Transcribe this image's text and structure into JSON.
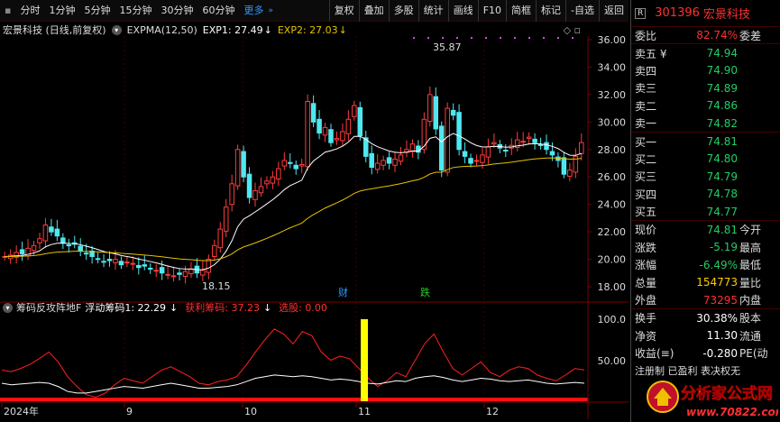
{
  "toolbar": {
    "periods": [
      "分时",
      "1分钟",
      "5分钟",
      "15分钟",
      "30分钟",
      "60分钟",
      "更多"
    ],
    "actions": [
      "复权",
      "叠加",
      "多股",
      "统计",
      "画线",
      "F10",
      "简框",
      "标记",
      "-自选",
      "返回"
    ]
  },
  "chart": {
    "stock_title": "宏景科技 (日线,前复权)",
    "indicator": "EXPMA(12,50)",
    "exp1": "EXP1: 27.49",
    "exp2": "EXP2: 27.03",
    "high_label": "35.87",
    "low_label": "18.15",
    "tag_cai": "财",
    "tag_die": "跌"
  },
  "oscillator": {
    "name": "筹码反攻阵地F",
    "float": "浮动筹码1: 22.29",
    "profit": "获利筹码: 37.23",
    "select": "选股: 0.00"
  },
  "y_axis_main": [
    "36.00",
    "34.00",
    "32.00",
    "30.00",
    "28.00",
    "26.00",
    "24.00",
    "22.00",
    "20.00",
    "18.00"
  ],
  "y_axis_osc": [
    "100.0",
    "50.00"
  ],
  "x_axis": [
    "2024年",
    "9",
    "10",
    "11",
    "12"
  ],
  "info": {
    "r_badge": "R",
    "code": "301396",
    "name": "宏景科技",
    "weibi_label": "委比",
    "weibi_value": "82.74%",
    "weicha_label": "委差",
    "asks": [
      {
        "label": "卖五 ¥",
        "price": "74.94"
      },
      {
        "label": "卖四",
        "price": "74.90"
      },
      {
        "label": "卖三",
        "price": "74.89"
      },
      {
        "label": "卖二",
        "price": "74.86"
      },
      {
        "label": "卖一",
        "price": "74.82"
      }
    ],
    "bids": [
      {
        "label": "买一",
        "price": "74.81"
      },
      {
        "label": "买二",
        "price": "74.80"
      },
      {
        "label": "买三",
        "price": "74.79"
      },
      {
        "label": "买四",
        "price": "74.78"
      },
      {
        "label": "买五",
        "price": "74.77"
      }
    ],
    "stats": [
      {
        "label": "现价",
        "value": "74.81",
        "color": "green",
        "label2": "今开"
      },
      {
        "label": "涨跌",
        "value": "-5.19",
        "color": "green",
        "label2": "最高"
      },
      {
        "label": "涨幅",
        "value": "-6.49%",
        "color": "green",
        "label2": "最低"
      },
      {
        "label": "总量",
        "value": "154773",
        "color": "yellow",
        "label2": "量比"
      },
      {
        "label": "外盘",
        "value": "73295",
        "color": "red",
        "label2": "内盘"
      }
    ],
    "stats2": [
      {
        "label": "换手",
        "value": "30.38%",
        "color": "white",
        "label2": "股本"
      },
      {
        "label": "净资",
        "value": "11.30",
        "color": "white",
        "label2": "流通"
      },
      {
        "label": "收益(≡)",
        "value": "-0.280",
        "color": "white",
        "label2": "PE(动"
      }
    ],
    "bottom_text": "注册制 已盈利 表决权无"
  },
  "watermark": {
    "line1": "分析家公式网",
    "line2": "www.70822.com"
  }
}
